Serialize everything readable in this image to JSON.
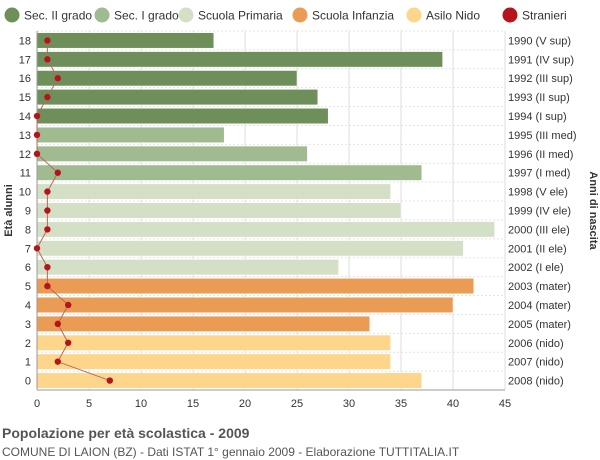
{
  "title": "Popolazione per età scolastica - 2009",
  "subtitle": "COMUNE DI LAION (BZ) - Dati ISTAT 1° gennaio 2009 - Elaborazione TUTTITALIA.IT",
  "chart_data": {
    "type": "bar",
    "orientation": "horizontal",
    "ylabel": "Età alunni",
    "ylabel_right": "Anni di nascita",
    "xlim": [
      0,
      45
    ],
    "xticks": [
      0,
      5,
      10,
      15,
      20,
      25,
      30,
      35,
      40,
      45
    ],
    "grid": true,
    "legend_position": "top",
    "legend": [
      {
        "name": "Sec. II grado",
        "color": "#6e8f5a"
      },
      {
        "name": "Sec. I grado",
        "color": "#a0bb8f"
      },
      {
        "name": "Scuola Primaria",
        "color": "#d4e0c6"
      },
      {
        "name": "Scuola Infanzia",
        "color": "#ea9b54"
      },
      {
        "name": "Asilo Nido",
        "color": "#fdd68c"
      },
      {
        "name": "Stranieri",
        "color": "#b5141c"
      }
    ],
    "categories": [
      "18",
      "17",
      "16",
      "15",
      "14",
      "13",
      "12",
      "11",
      "10",
      "9",
      "8",
      "7",
      "6",
      "5",
      "4",
      "3",
      "2",
      "1",
      "0"
    ],
    "birth_years": [
      "1990 (V sup)",
      "1991 (IV sup)",
      "1992 (III sup)",
      "1993 (II sup)",
      "1994 (I sup)",
      "1995 (III med)",
      "1996 (II med)",
      "1997 (I med)",
      "1998 (V ele)",
      "1999 (IV ele)",
      "2000 (III ele)",
      "2001 (II ele)",
      "2002 (I ele)",
      "2003 (mater)",
      "2004 (mater)",
      "2005 (mater)",
      "2006 (nido)",
      "2007 (nido)",
      "2008 (nido)"
    ],
    "values": [
      17,
      39,
      25,
      27,
      28,
      18,
      26,
      37,
      34,
      35,
      44,
      41,
      29,
      42,
      40,
      32,
      34,
      34,
      37
    ],
    "groups": [
      "Sec. II grado",
      "Sec. II grado",
      "Sec. II grado",
      "Sec. II grado",
      "Sec. II grado",
      "Sec. I grado",
      "Sec. I grado",
      "Sec. I grado",
      "Scuola Primaria",
      "Scuola Primaria",
      "Scuola Primaria",
      "Scuola Primaria",
      "Scuola Primaria",
      "Scuola Infanzia",
      "Scuola Infanzia",
      "Scuola Infanzia",
      "Asilo Nido",
      "Asilo Nido",
      "Asilo Nido"
    ],
    "stranieri": [
      1,
      1,
      2,
      1,
      0,
      0,
      0,
      2,
      1,
      1,
      1,
      0,
      1,
      1,
      3,
      2,
      3,
      2,
      7
    ]
  }
}
